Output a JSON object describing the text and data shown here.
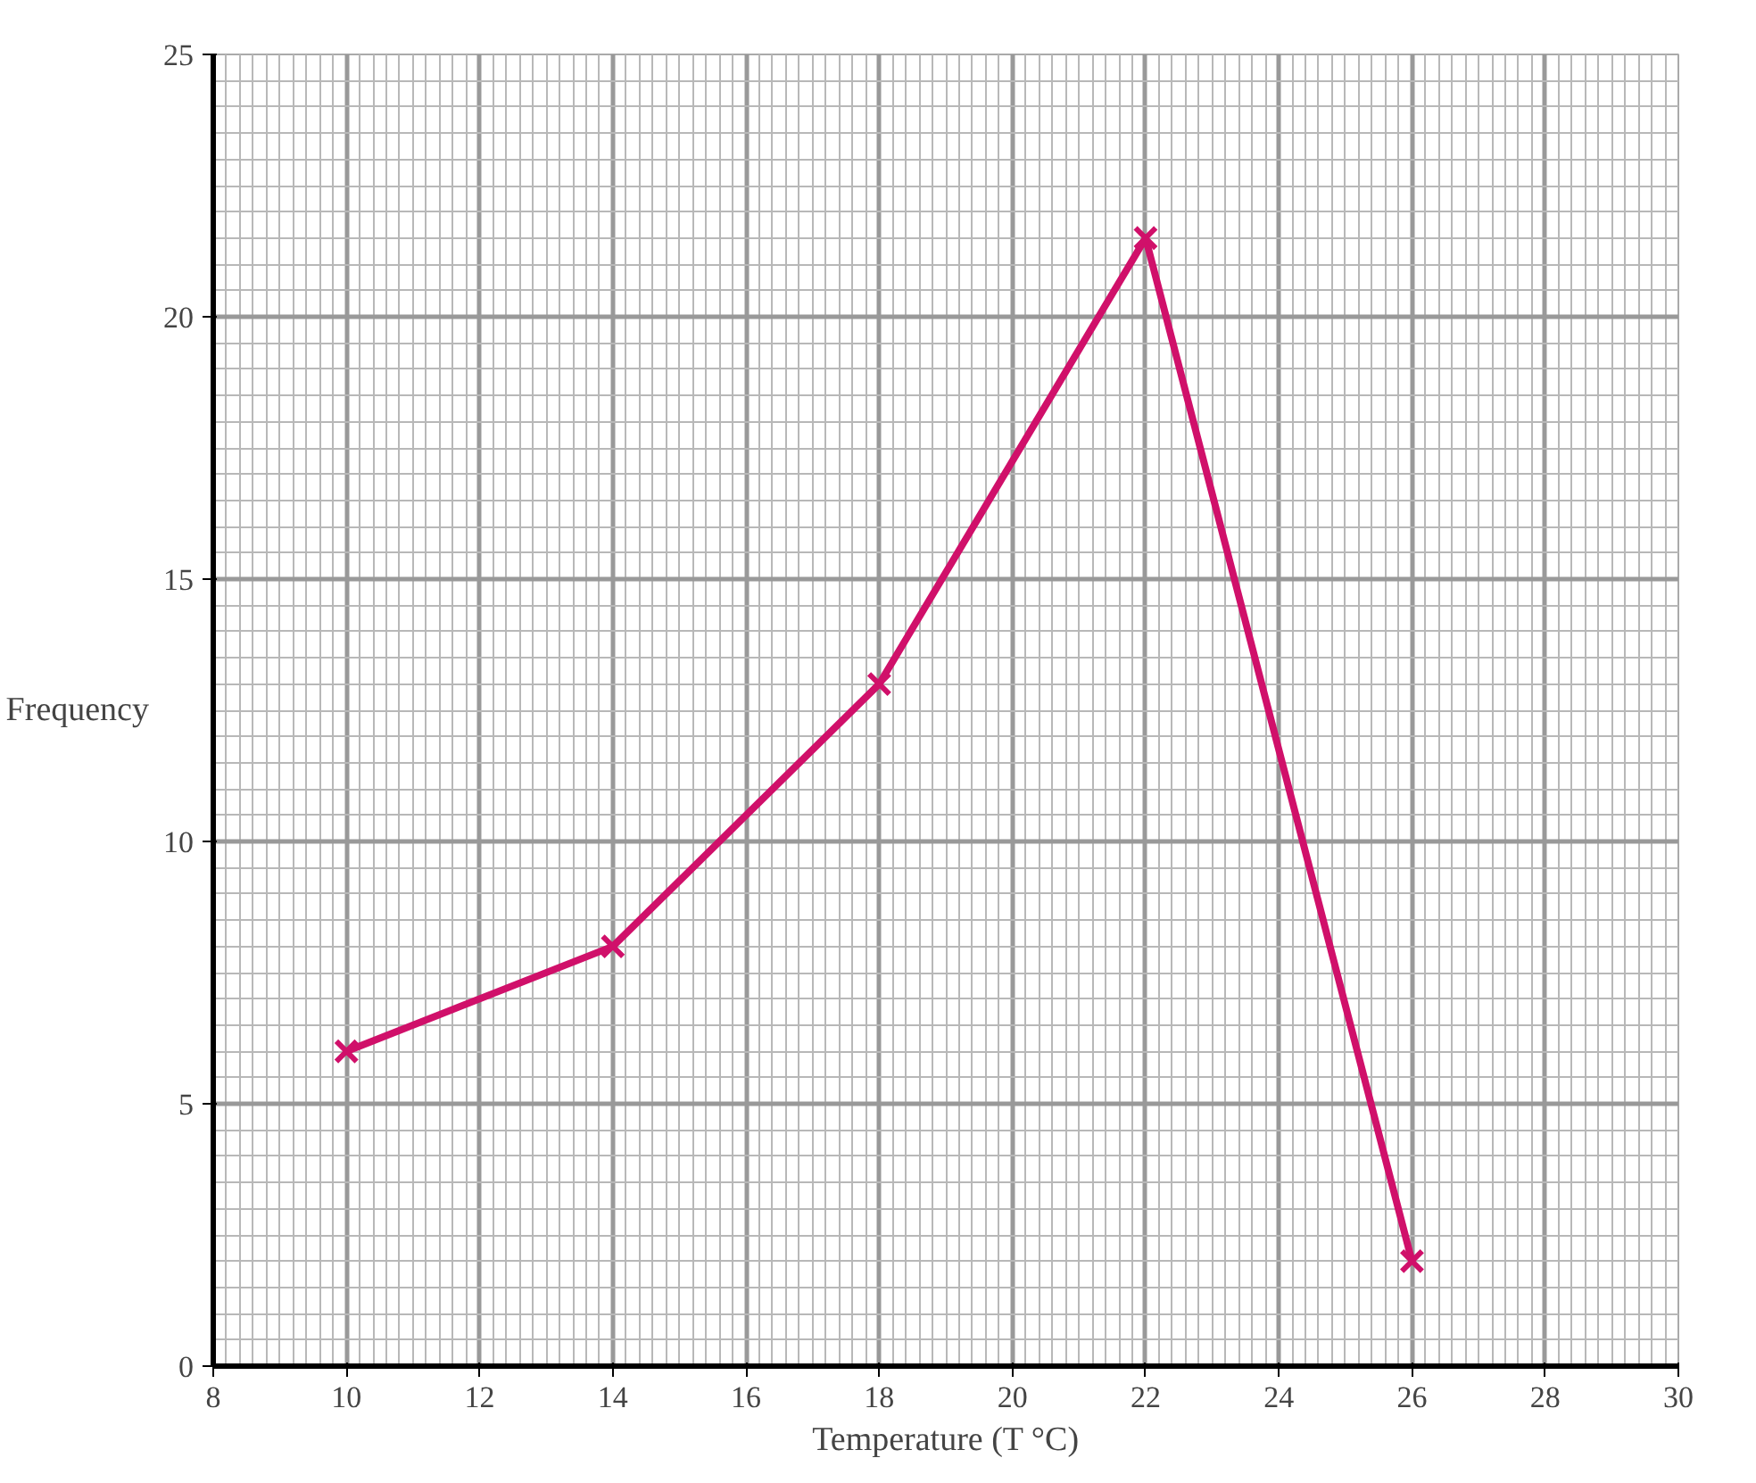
{
  "chart_data": {
    "type": "line",
    "xlabel": "Temperature (T °C)",
    "ylabel": "Frequency",
    "x": [
      10,
      14,
      18,
      22,
      26
    ],
    "series": [
      {
        "color": "#d0106a",
        "values": [
          6,
          8,
          13,
          21.5,
          2
        ]
      }
    ],
    "xlim": [
      8,
      30
    ],
    "ylim": [
      0,
      25
    ],
    "xticks": [
      8,
      10,
      12,
      14,
      16,
      18,
      20,
      22,
      24,
      26,
      28,
      30
    ],
    "yticks": [
      0,
      5,
      10,
      15,
      20,
      25
    ],
    "grid": true,
    "marker": "cross",
    "line_style": "solid"
  }
}
